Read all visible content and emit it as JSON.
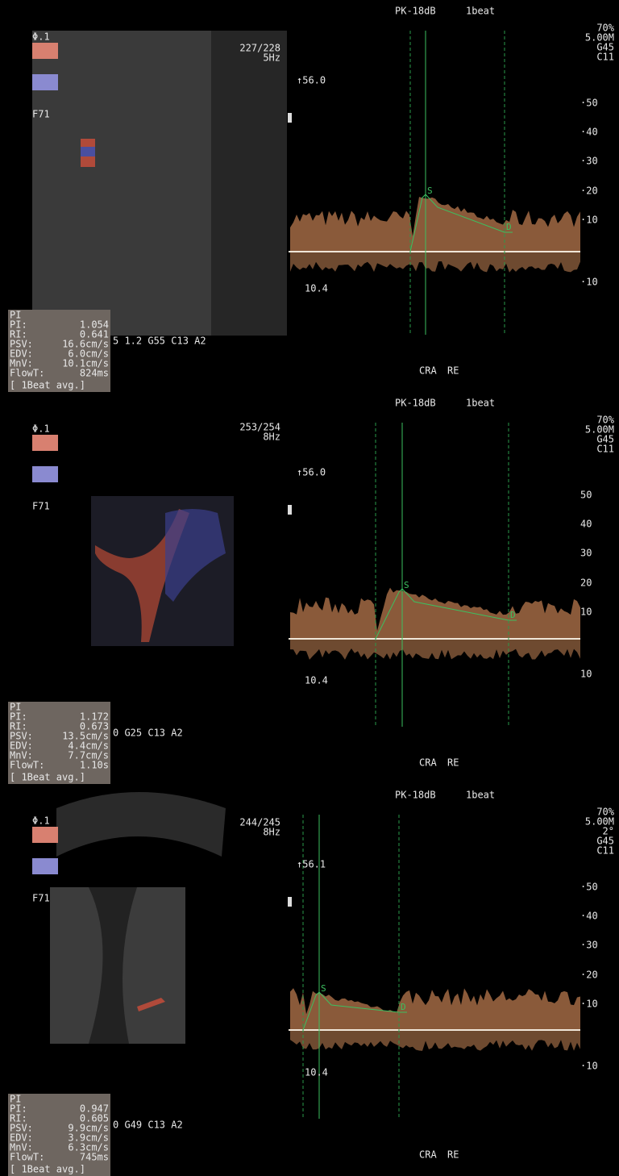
{
  "panels": [
    {
      "phi": "Φ.1",
      "frame": "227/228",
      "rate": "5Hz",
      "focus": "F71",
      "mode": "PK-18dB",
      "beat": "1beat",
      "settings": [
        "70%",
        "5.00M",
        "G45",
        "C11"
      ],
      "velocity": "↑56.0",
      "scale": [
        "·50",
        "·40",
        "·30",
        "·20",
        "·10",
        "·10"
      ],
      "baseline": "10.4",
      "params": "5 1.2 G55 C13 A2",
      "vessel": "CRA",
      "side": "RE",
      "peak": "S",
      "diastole": "D",
      "measure_title": "PI",
      "measurements": [
        [
          "PI:",
          "1.054"
        ],
        [
          "RI:",
          "0.641"
        ],
        [
          "PSV:",
          "16.6cm/s"
        ],
        [
          "EDV:",
          "6.0cm/s"
        ],
        [
          "MnV:",
          "10.1cm/s"
        ],
        [
          "FlowT:",
          "824ms"
        ]
      ],
      "avg": "[ 1Beat avg.]"
    },
    {
      "phi": "Φ.1",
      "frame": "253/254",
      "rate": "8Hz",
      "focus": "F71",
      "mode": "PK-18dB",
      "beat": "1beat",
      "settings": [
        "70%",
        "5.00M",
        "G45",
        "C11"
      ],
      "velocity": "↑56.0",
      "scale": [
        "50",
        "40",
        "30",
        "20",
        "10",
        "10"
      ],
      "baseline": "10.4",
      "params": "0 G25 C13 A2",
      "vessel": "CRA",
      "side": "RE",
      "peak": "S",
      "diastole": "D",
      "measure_title": "PI",
      "measurements": [
        [
          "PI:",
          "1.172"
        ],
        [
          "RI:",
          "0.673"
        ],
        [
          "PSV:",
          "13.5cm/s"
        ],
        [
          "EDV:",
          "4.4cm/s"
        ],
        [
          "MnV:",
          "7.7cm/s"
        ],
        [
          "FlowT:",
          "1.10s"
        ]
      ],
      "avg": "[ 1Beat avg.]"
    },
    {
      "phi": "Φ.1",
      "frame": "244/245",
      "rate": "8Hz",
      "focus": "F71",
      "mode": "PK-18dB",
      "beat": "1beat",
      "settings": [
        "70%",
        "5.00M",
        "2°",
        "G45",
        "C11"
      ],
      "velocity": "↑56.1",
      "scale": [
        "·50",
        "·40",
        "·30",
        "·20",
        "·10",
        "·10"
      ],
      "baseline": "10.4",
      "params": "0 G49 C13 A2",
      "vessel": "CRA",
      "side": "RE",
      "peak": "S",
      "diastole": "D",
      "measure_title": "PI",
      "measurements": [
        [
          "PI:",
          "0.947"
        ],
        [
          "RI:",
          "0.605"
        ],
        [
          "PSV:",
          "9.9cm/s"
        ],
        [
          "EDV:",
          "3.9cm/s"
        ],
        [
          "MnV:",
          "6.3cm/s"
        ],
        [
          "FlowT:",
          "745ms"
        ]
      ],
      "avg": "[ 1Beat avg.]"
    }
  ]
}
